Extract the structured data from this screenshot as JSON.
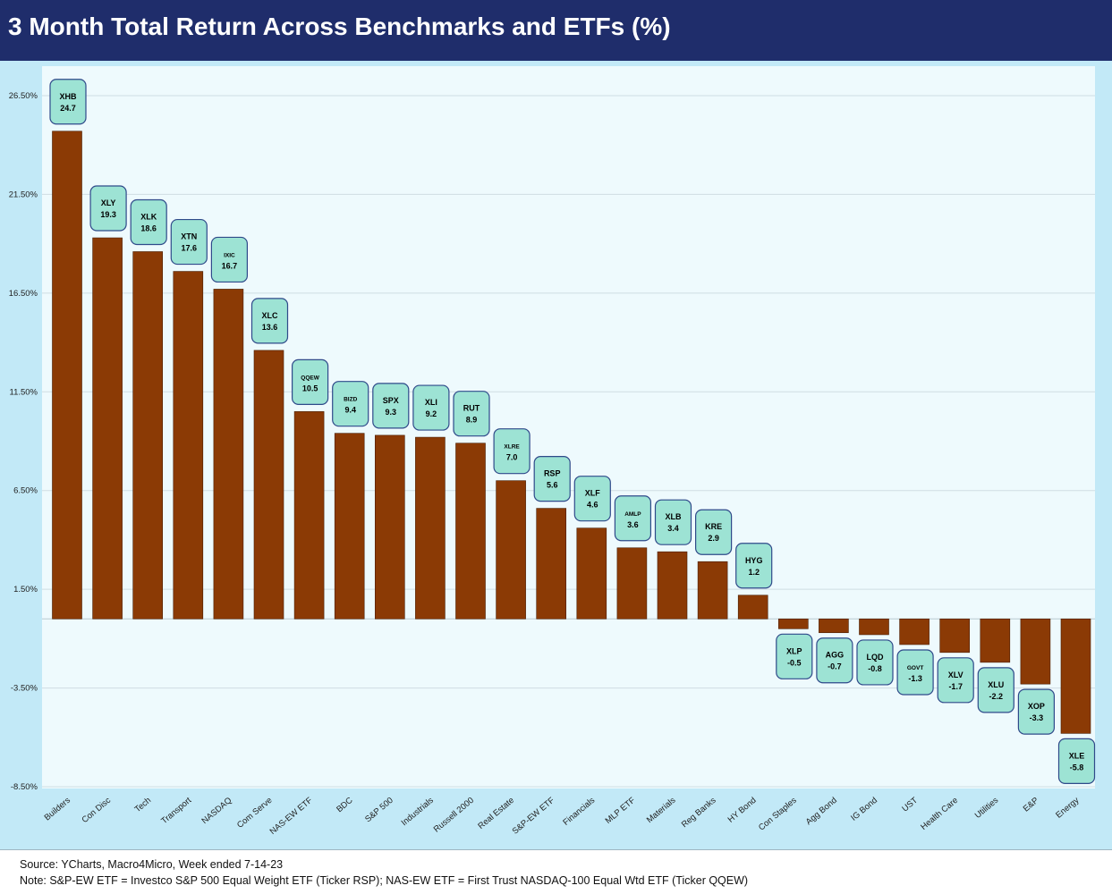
{
  "title": "3 Month Total Return Across Benchmarks and ETFs (%)",
  "footer": {
    "source": "Source: YCharts, Macro4Micro, Week ended 7-14-23",
    "note": "Note: S&P-EW ETF = Investco S&P 500 Equal Weight ETF (Ticker RSP); NAS-EW ETF = First Trust NASDAQ-100 Equal Wtd ETF (Ticker QQEW)"
  },
  "colors": {
    "bar": "#8b3a05",
    "label_fill": "#9de3d4",
    "label_border": "#2f4a8a",
    "plot_bg": "#eefafd",
    "outer_bg": "#c2e9f7",
    "title_bg": "#1f2d6b"
  },
  "chart_data": {
    "type": "bar",
    "title": "3 Month Total Return Across Benchmarks and ETFs (%)",
    "xlabel": "",
    "ylabel": "",
    "ylim": [
      -8.5,
      26.5
    ],
    "yticks": [
      "26.50%",
      "21.50%",
      "16.50%",
      "11.50%",
      "6.50%",
      "1.50%",
      "-3.50%",
      "-8.50%"
    ],
    "grid": "horizontal",
    "categories": [
      "Builders",
      "Con Disc",
      "Tech",
      "Transport",
      "NASDAQ",
      "Com Serve",
      "NAS-EW ETF",
      "BDC",
      "S&P 500",
      "Industrials",
      "Russell 2000",
      "Real Estate",
      "S&P-EW ETF",
      "Financials",
      "MLP ETF",
      "Materials",
      "Reg Banks",
      "HY Bond",
      "Con Staples",
      "Agg Bond",
      "IG Bond",
      "UST",
      "Health Care",
      "Utilities",
      "E&P",
      "Energy"
    ],
    "tickers": [
      "XHB",
      "XLY",
      "XLK",
      "XTN",
      "IXIC",
      "XLC",
      "QQEW",
      "BIZD",
      "SPX",
      "XLI",
      "RUT",
      "XLRE",
      "RSP",
      "XLF",
      "AMLP",
      "XLB",
      "KRE",
      "HYG",
      "XLP",
      "AGG",
      "LQD",
      "GOVT",
      "XLV",
      "XLU",
      "XOP",
      "XLE"
    ],
    "value_labels": [
      "24.7",
      "19.3",
      "18.6",
      "17.6",
      "16.7",
      "13.6",
      "10.5",
      "9.4",
      "9.3",
      "9.2",
      "8.9",
      "7.0",
      "5.6",
      "4.6",
      "3.6",
      "3.4",
      "2.9",
      "1.2",
      "-0.5",
      "-0.7",
      "-0.8",
      "-1.3",
      "-1.7",
      "-2.2",
      "-3.3",
      "-5.8"
    ],
    "values": [
      24.7,
      19.3,
      18.6,
      17.6,
      16.7,
      13.6,
      10.5,
      9.4,
      9.3,
      9.2,
      8.9,
      7.0,
      5.6,
      4.6,
      3.6,
      3.4,
      2.9,
      1.2,
      -0.5,
      -0.7,
      -0.8,
      -1.3,
      -1.7,
      -2.2,
      -3.3,
      -5.8
    ]
  }
}
